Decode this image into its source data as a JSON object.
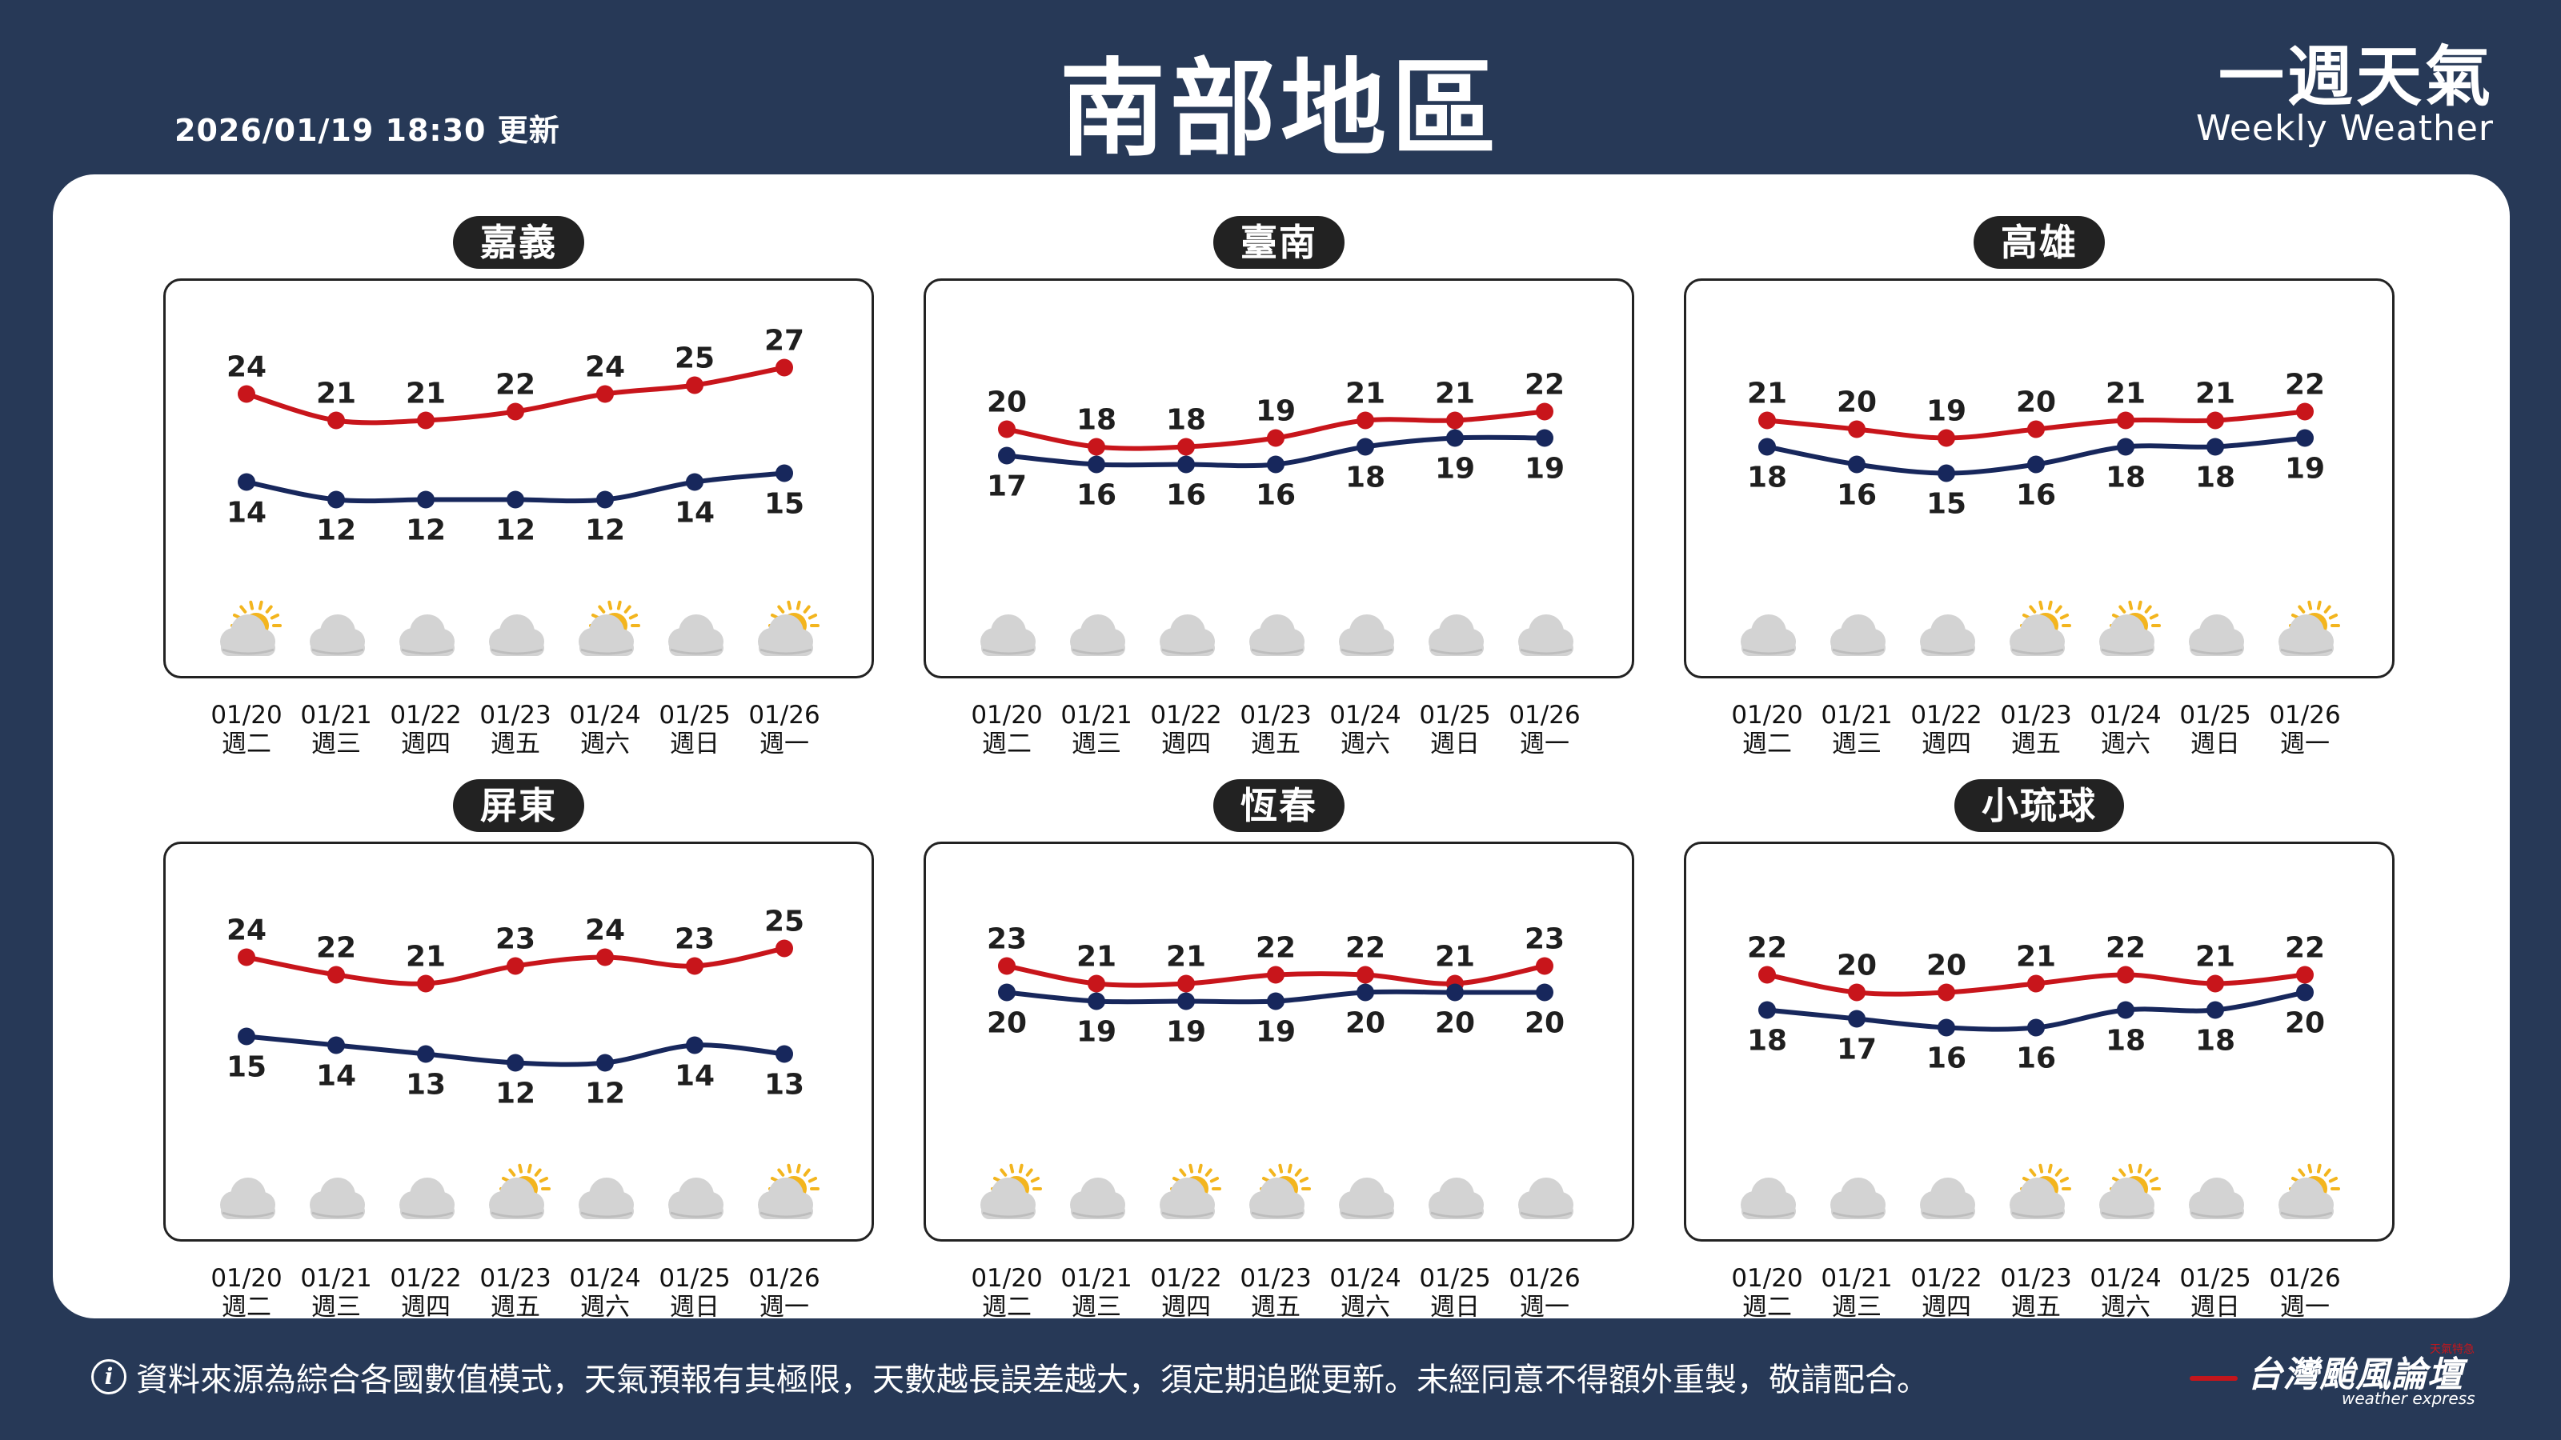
{
  "header": {
    "updated": "2026/01/19 18:30 更新",
    "title": "南部地區",
    "brand_zh": "一週天氣",
    "brand_en": "Weekly Weather"
  },
  "footer": {
    "info_icon": "i",
    "disclaimer": "資料來源為綜合各國數值模式，天氣預報有其極限，天數越長誤差越大，須定期追蹤更新。未經同意不得額外重製，敬請配合。",
    "logo": "台灣颱風論壇",
    "logo_sub": "weather express",
    "logo_tag": "天氣特急"
  },
  "colors": {
    "high": "#c8151b",
    "low": "#17275c",
    "background": "#273957",
    "cloud": "#d3d3d3",
    "sun": "#f3b51e"
  },
  "chart_data": [
    {
      "type": "line",
      "title": "嘉義",
      "x": [
        "01/20",
        "01/21",
        "01/22",
        "01/23",
        "01/24",
        "01/25",
        "01/26"
      ],
      "weekdays": [
        "週二",
        "週三",
        "週四",
        "週五",
        "週六",
        "週日",
        "週一"
      ],
      "series": [
        {
          "values": [
            24,
            21,
            21,
            22,
            24,
            25,
            27
          ]
        },
        {
          "values": [
            14,
            12,
            12,
            12,
            12,
            14,
            15
          ]
        }
      ],
      "icons": [
        "partly-cloudy-icon",
        "cloudy-icon",
        "cloudy-icon",
        "cloudy-icon",
        "partly-cloudy-icon",
        "cloudy-icon",
        "partly-cloudy-icon"
      ]
    },
    {
      "type": "line",
      "title": "臺南",
      "x": [
        "01/20",
        "01/21",
        "01/22",
        "01/23",
        "01/24",
        "01/25",
        "01/26"
      ],
      "weekdays": [
        "週二",
        "週三",
        "週四",
        "週五",
        "週六",
        "週日",
        "週一"
      ],
      "series": [
        {
          "values": [
            20,
            18,
            18,
            19,
            21,
            21,
            22
          ]
        },
        {
          "values": [
            17,
            16,
            16,
            16,
            18,
            19,
            19
          ]
        }
      ],
      "icons": [
        "cloudy-icon",
        "cloudy-icon",
        "cloudy-icon",
        "cloudy-icon",
        "cloudy-icon",
        "cloudy-icon",
        "cloudy-icon"
      ]
    },
    {
      "type": "line",
      "title": "高雄",
      "x": [
        "01/20",
        "01/21",
        "01/22",
        "01/23",
        "01/24",
        "01/25",
        "01/26"
      ],
      "weekdays": [
        "週二",
        "週三",
        "週四",
        "週五",
        "週六",
        "週日",
        "週一"
      ],
      "series": [
        {
          "values": [
            21,
            20,
            19,
            20,
            21,
            21,
            22
          ]
        },
        {
          "values": [
            18,
            16,
            15,
            16,
            18,
            18,
            19
          ]
        }
      ],
      "icons": [
        "cloudy-icon",
        "cloudy-icon",
        "cloudy-icon",
        "partly-cloudy-icon",
        "partly-cloudy-icon",
        "cloudy-icon",
        "partly-cloudy-icon"
      ]
    },
    {
      "type": "line",
      "title": "屏東",
      "x": [
        "01/20",
        "01/21",
        "01/22",
        "01/23",
        "01/24",
        "01/25",
        "01/26"
      ],
      "weekdays": [
        "週二",
        "週三",
        "週四",
        "週五",
        "週六",
        "週日",
        "週一"
      ],
      "series": [
        {
          "values": [
            24,
            22,
            21,
            23,
            24,
            23,
            25
          ]
        },
        {
          "values": [
            15,
            14,
            13,
            12,
            12,
            14,
            13
          ]
        }
      ],
      "icons": [
        "cloudy-icon",
        "cloudy-icon",
        "cloudy-icon",
        "partly-cloudy-icon",
        "cloudy-icon",
        "cloudy-icon",
        "partly-cloudy-icon"
      ]
    },
    {
      "type": "line",
      "title": "恆春",
      "x": [
        "01/20",
        "01/21",
        "01/22",
        "01/23",
        "01/24",
        "01/25",
        "01/26"
      ],
      "weekdays": [
        "週二",
        "週三",
        "週四",
        "週五",
        "週六",
        "週日",
        "週一"
      ],
      "series": [
        {
          "values": [
            23,
            21,
            21,
            22,
            22,
            21,
            23
          ]
        },
        {
          "values": [
            20,
            19,
            19,
            19,
            20,
            20,
            20
          ]
        }
      ],
      "icons": [
        "partly-cloudy-icon",
        "cloudy-icon",
        "partly-cloudy-icon",
        "partly-cloudy-icon",
        "cloudy-icon",
        "cloudy-icon",
        "cloudy-icon"
      ]
    },
    {
      "type": "line",
      "title": "小琉球",
      "x": [
        "01/20",
        "01/21",
        "01/22",
        "01/23",
        "01/24",
        "01/25",
        "01/26"
      ],
      "weekdays": [
        "週二",
        "週三",
        "週四",
        "週五",
        "週六",
        "週日",
        "週一"
      ],
      "series": [
        {
          "values": [
            22,
            20,
            20,
            21,
            22,
            21,
            22
          ]
        },
        {
          "values": [
            18,
            17,
            16,
            16,
            18,
            18,
            20
          ]
        }
      ],
      "icons": [
        "cloudy-icon",
        "cloudy-icon",
        "cloudy-icon",
        "partly-cloudy-icon",
        "partly-cloudy-icon",
        "cloudy-icon",
        "partly-cloudy-icon"
      ]
    }
  ]
}
